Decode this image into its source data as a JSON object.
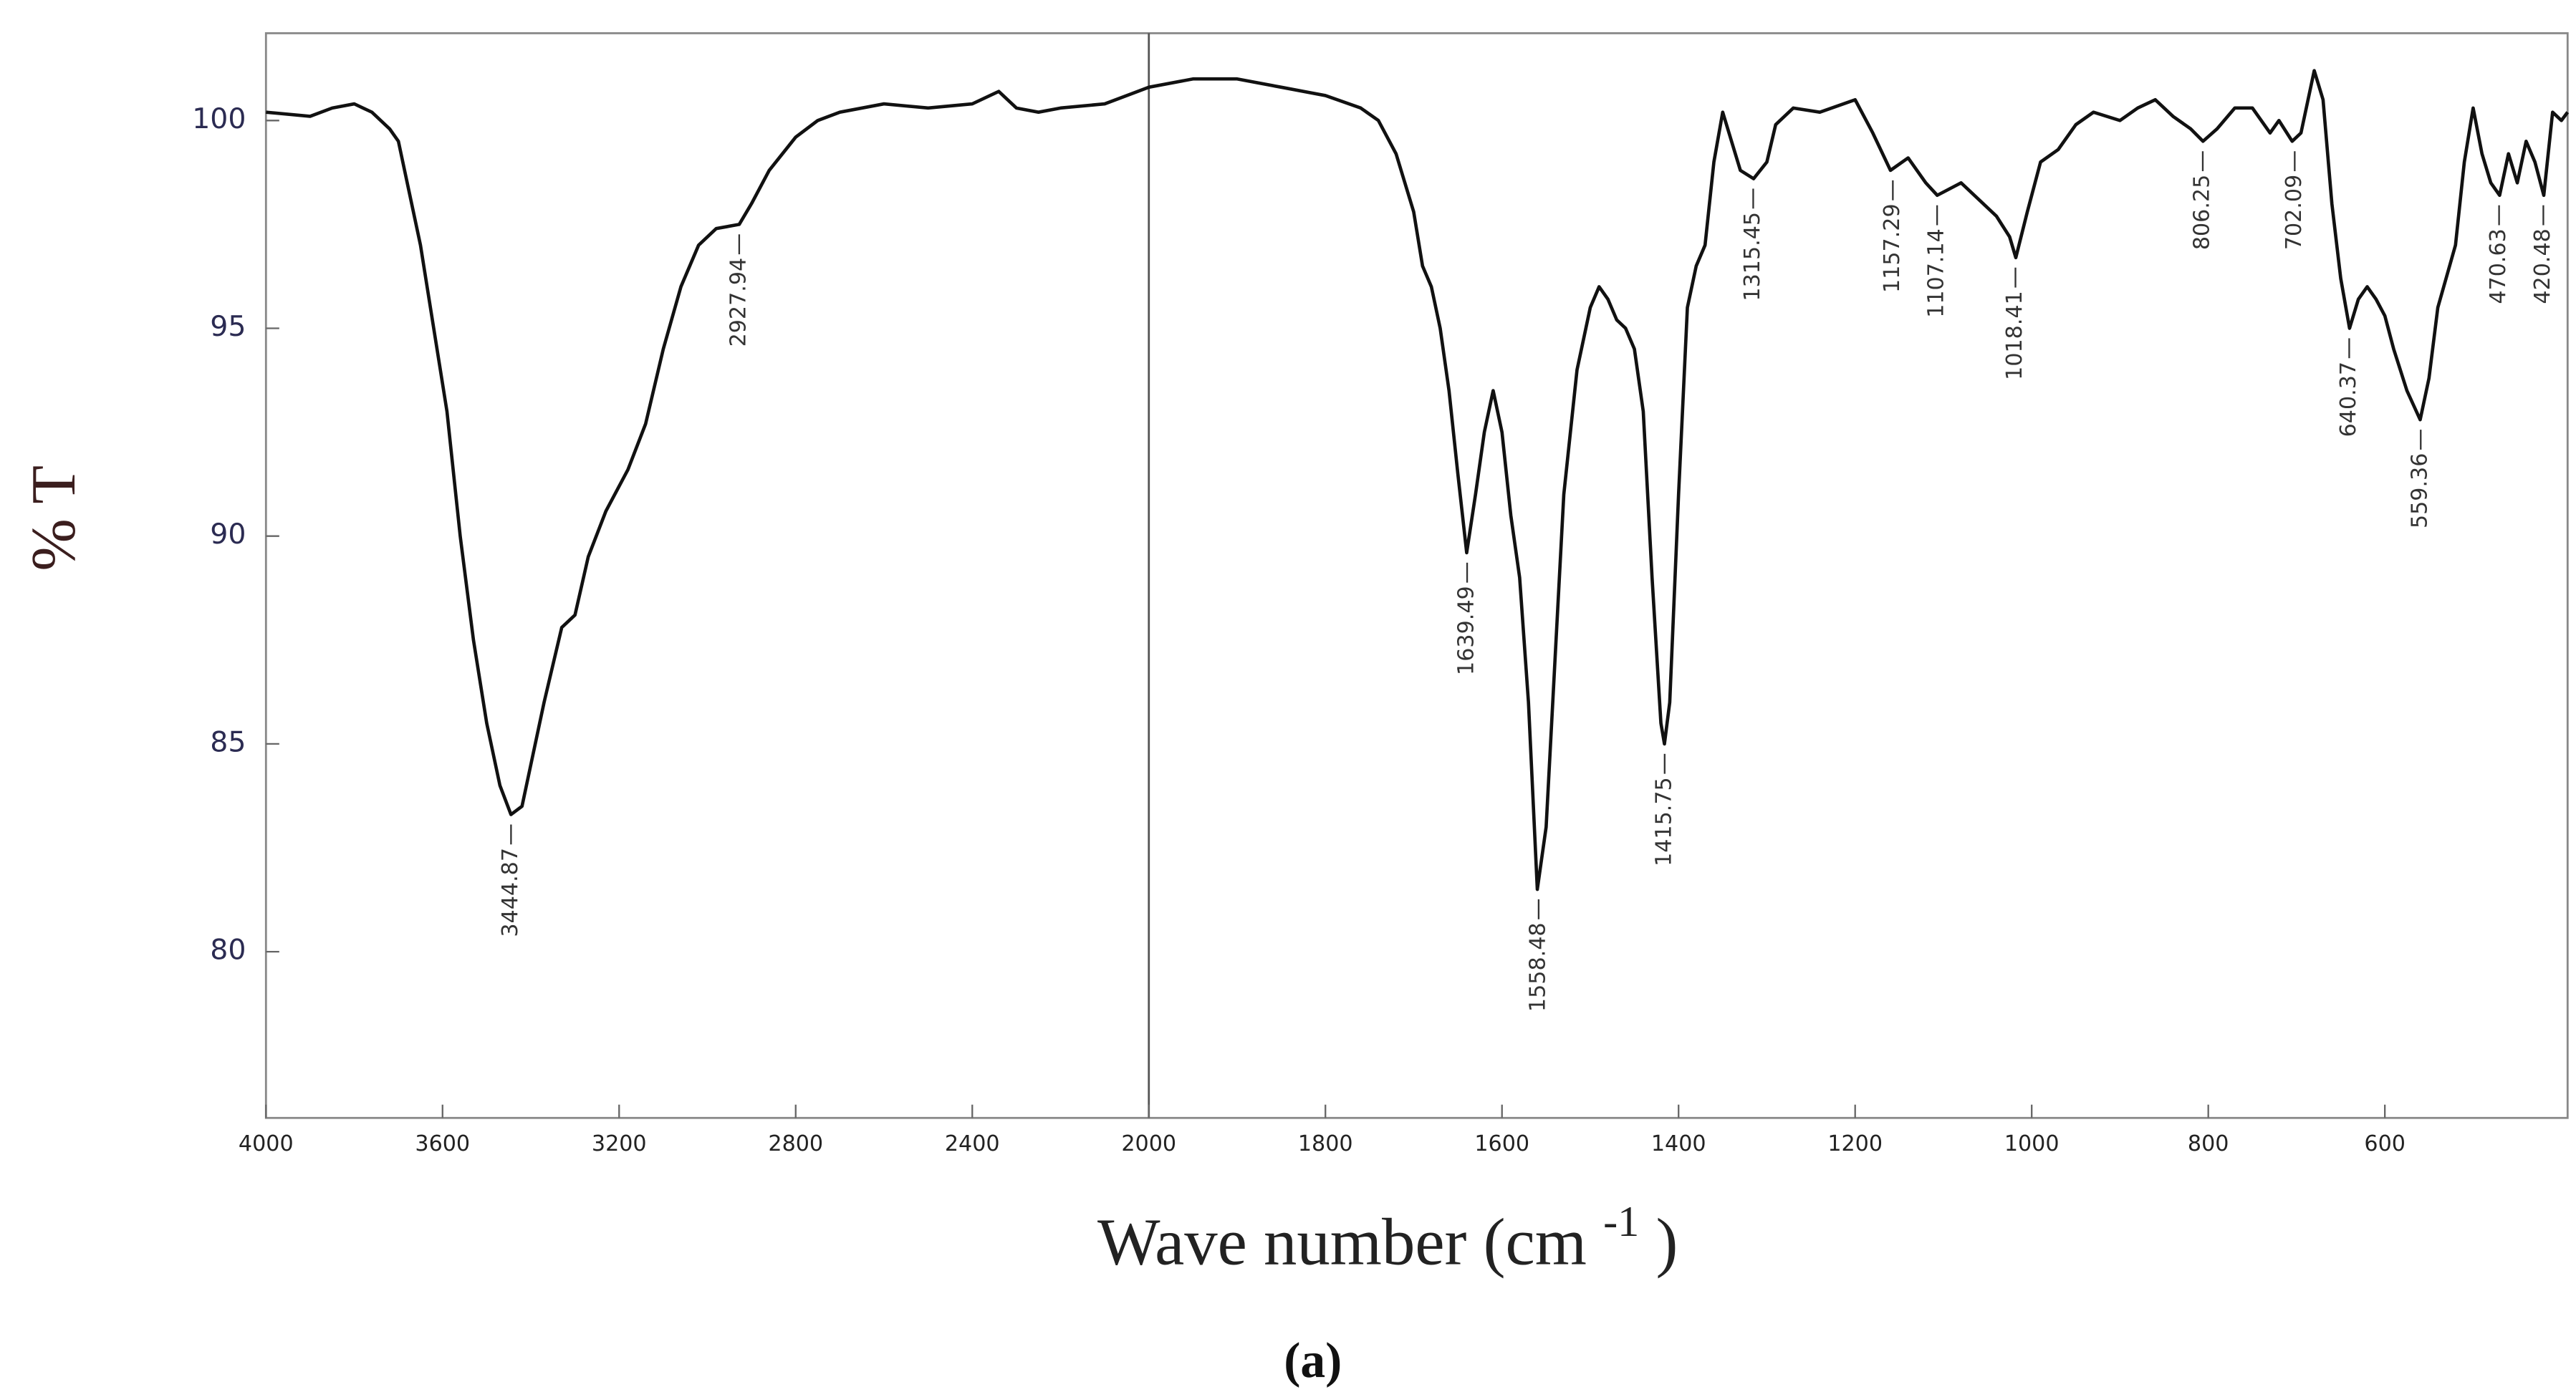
{
  "chart_data": {
    "type": "line",
    "ylabel": "% T",
    "xlabel": "Wave number (cm",
    "xlabel_sup": "-1",
    "xlabel_end": ")",
    "caption": "(a)",
    "xlim": [
      4000,
      393
    ],
    "x_break": 2000,
    "x_break_factor": 2,
    "xticks": [
      4000,
      3600,
      3200,
      2800,
      2400,
      2000,
      1800,
      1600,
      1400,
      1200,
      1000,
      800,
      600
    ],
    "ylim": [
      76,
      102.1
    ],
    "yticks": [
      80,
      85,
      90,
      95,
      100
    ],
    "color": "#111111",
    "x": [
      4000,
      3900,
      3850,
      3800,
      3760,
      3720,
      3700,
      3680,
      3650,
      3620,
      3590,
      3560,
      3530,
      3500,
      3470,
      3445,
      3420,
      3400,
      3370,
      3330,
      3300,
      3270,
      3230,
      3180,
      3140,
      3100,
      3060,
      3020,
      2980,
      2928,
      2900,
      2860,
      2800,
      2750,
      2700,
      2600,
      2500,
      2400,
      2340,
      2300,
      2250,
      2200,
      2100,
      2000,
      1950,
      1900,
      1850,
      1800,
      1760,
      1740,
      1720,
      1700,
      1690,
      1680,
      1670,
      1660,
      1650,
      1640,
      1630,
      1620,
      1610,
      1600,
      1590,
      1580,
      1570,
      1560,
      1550,
      1540,
      1530,
      1515,
      1500,
      1490,
      1480,
      1470,
      1460,
      1450,
      1440,
      1430,
      1420,
      1416,
      1410,
      1400,
      1390,
      1380,
      1370,
      1360,
      1350,
      1340,
      1330,
      1315,
      1300,
      1290,
      1270,
      1240,
      1200,
      1180,
      1160,
      1140,
      1120,
      1107,
      1080,
      1060,
      1040,
      1025,
      1018,
      1005,
      990,
      970,
      950,
      930,
      900,
      880,
      860,
      840,
      820,
      806,
      790,
      770,
      750,
      730,
      720,
      705,
      695,
      680,
      670,
      660,
      650,
      640,
      630,
      620,
      610,
      600,
      590,
      575,
      560,
      550,
      540,
      520,
      510,
      500,
      490,
      480,
      470,
      460,
      450,
      440,
      430,
      420,
      410,
      400,
      393
    ],
    "y": [
      100.2,
      100.1,
      100.3,
      100.4,
      100.2,
      99.8,
      99.5,
      98.5,
      97,
      95,
      93,
      90,
      87.5,
      85.5,
      84,
      83.3,
      83.5,
      84.5,
      86,
      87.8,
      88.1,
      89.5,
      90.6,
      91.6,
      92.7,
      94.5,
      96,
      97,
      97.4,
      97.5,
      98,
      98.8,
      99.6,
      100,
      100.2,
      100.4,
      100.3,
      100.4,
      100.7,
      100.3,
      100.2,
      100.3,
      100.4,
      100.8,
      101,
      101,
      100.8,
      100.6,
      100.3,
      100,
      99.2,
      97.8,
      96.5,
      96,
      95,
      93.5,
      91.5,
      89.6,
      91,
      92.5,
      93.5,
      92.5,
      90.5,
      89,
      86,
      81.5,
      83,
      87,
      91,
      94,
      95.5,
      96,
      95.7,
      95.2,
      95,
      94.5,
      93,
      89,
      85.5,
      85,
      86,
      91,
      95.5,
      96.5,
      97,
      99,
      100.2,
      99.5,
      98.8,
      98.6,
      99,
      99.9,
      100.3,
      100.2,
      100.5,
      99.7,
      98.8,
      99.1,
      98.5,
      98.2,
      98.5,
      98.1,
      97.7,
      97.2,
      96.7,
      97.8,
      99,
      99.3,
      99.9,
      100.2,
      100,
      100.3,
      100.5,
      100.1,
      99.8,
      99.5,
      99.8,
      100.3,
      100.3,
      99.7,
      100,
      99.5,
      99.7,
      101.2,
      100.5,
      98,
      96.2,
      95,
      95.7,
      96,
      95.7,
      95.3,
      94.5,
      93.5,
      92.8,
      93.8,
      95.5,
      97,
      99,
      100.3,
      99.2,
      98.5,
      98.2,
      99.2,
      98.5,
      99.5,
      99,
      98.2,
      100.2,
      100,
      100.2
    ],
    "annotations": [
      {
        "x": 3444.87,
        "y": 83.3
      },
      {
        "x": 2927.94,
        "y": 97.5
      },
      {
        "x": 1639.49,
        "y": 89.6
      },
      {
        "x": 1558.48,
        "y": 81.5
      },
      {
        "x": 1415.75,
        "y": 85
      },
      {
        "x": 1315.45,
        "y": 98.6
      },
      {
        "x": 1157.29,
        "y": 98.8
      },
      {
        "x": 1107.14,
        "y": 98.2
      },
      {
        "x": 1018.41,
        "y": 96.7
      },
      {
        "x": 806.25,
        "y": 99.5
      },
      {
        "x": 702.09,
        "y": 99.5
      },
      {
        "x": 640.37,
        "y": 95
      },
      {
        "x": 559.36,
        "y": 92.8
      },
      {
        "x": 470.63,
        "y": 98.2
      },
      {
        "x": 420.48,
        "y": 98.2
      }
    ]
  }
}
